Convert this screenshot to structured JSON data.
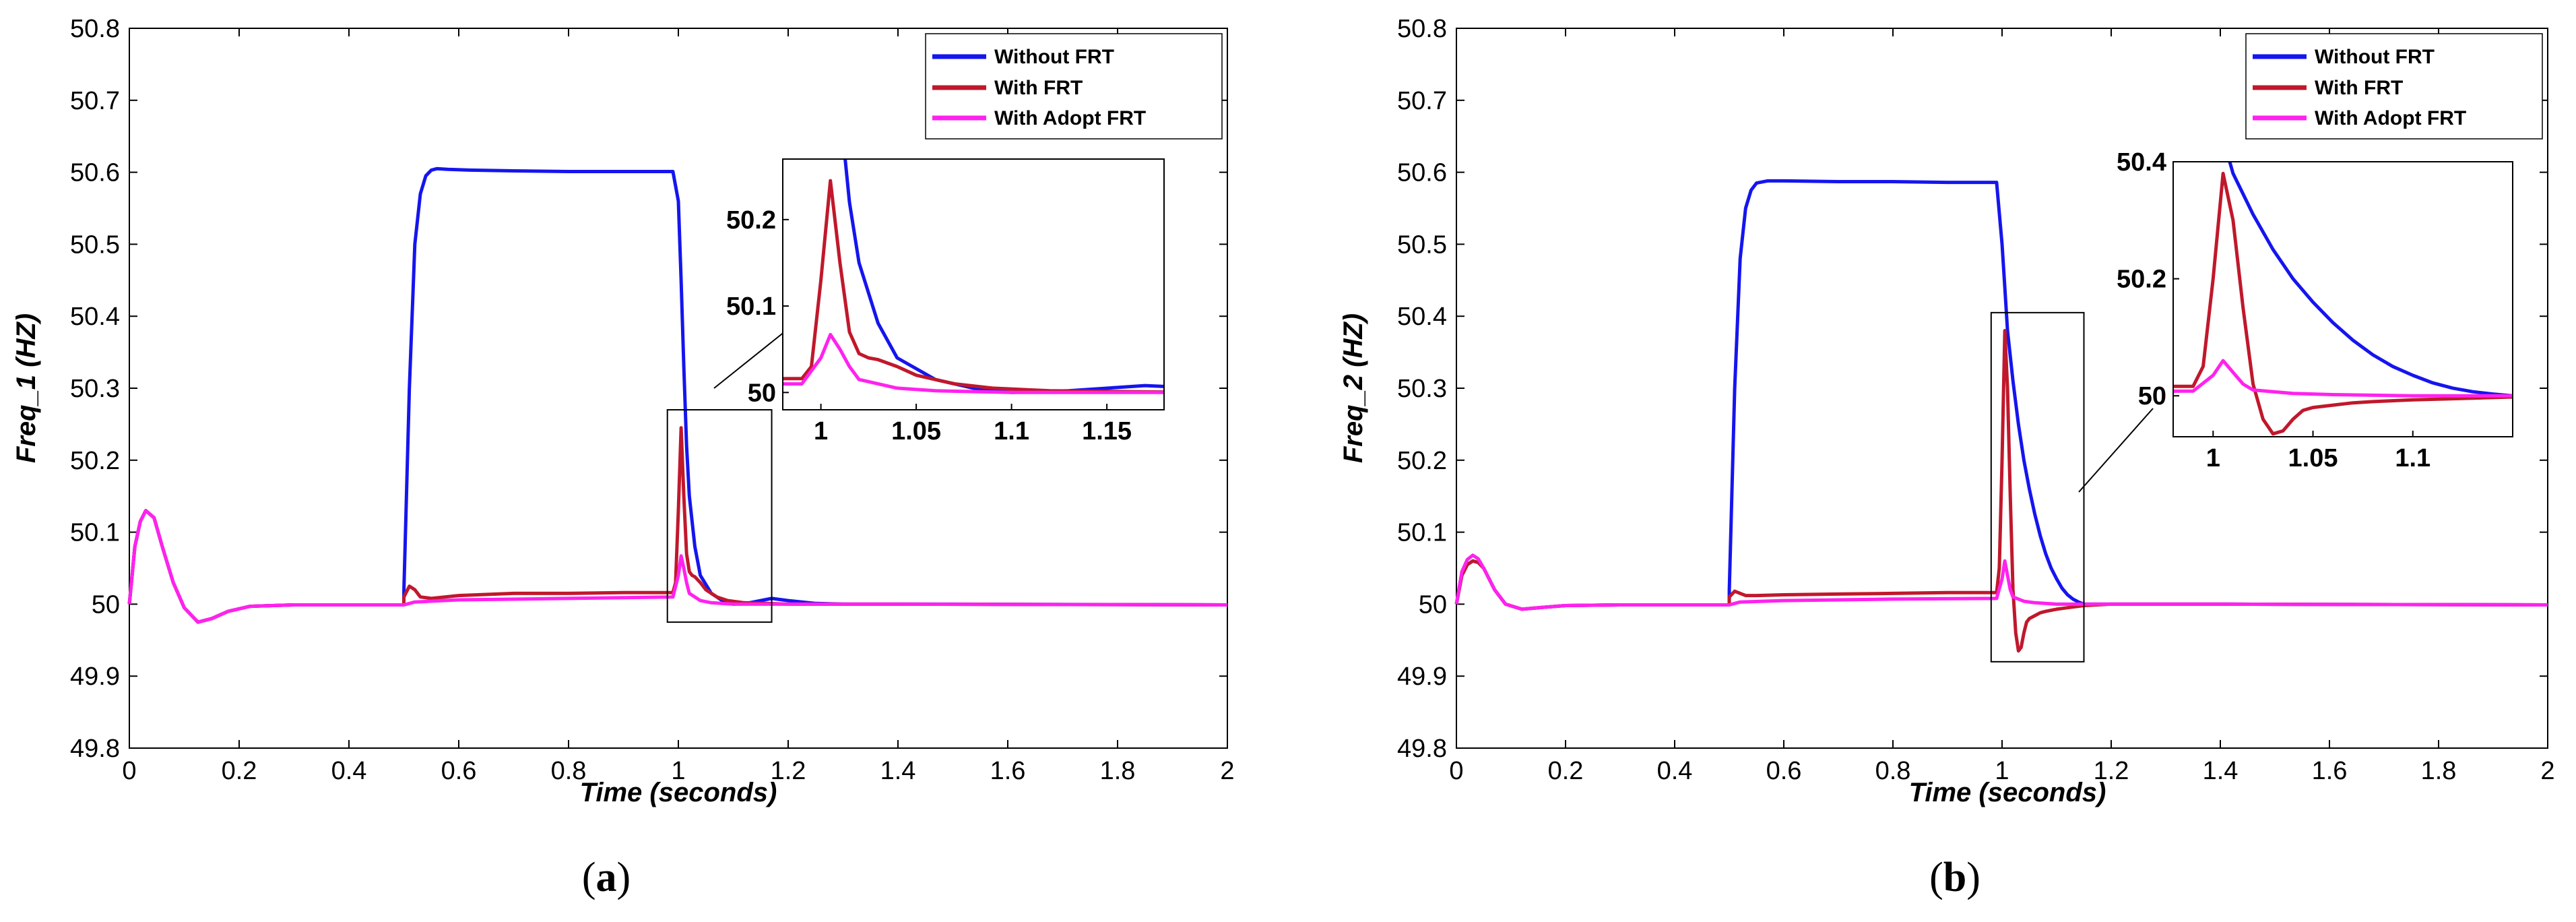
{
  "figure": {
    "panels": [
      {
        "open": "(",
        "letter": "a",
        "close": ")"
      },
      {
        "open": "(",
        "letter": "b",
        "close": ")"
      }
    ]
  },
  "chart_data": [
    {
      "type": "line",
      "panel": "(a)",
      "title": "",
      "xlabel": "Time (seconds)",
      "ylabel": "Freq_1 (HZ)",
      "xlim": [
        0,
        2
      ],
      "ylim": [
        49.8,
        50.8
      ],
      "xticks": [
        0,
        0.2,
        0.4,
        0.6,
        0.8,
        1,
        1.2,
        1.4,
        1.6,
        1.8,
        2
      ],
      "xtick_labels": [
        "0",
        "0.2",
        "0.4",
        "0.6",
        "0.8",
        "1",
        "1.2",
        "1.4",
        "1.6",
        "1.8",
        "2"
      ],
      "yticks": [
        49.8,
        49.9,
        50,
        50.1,
        50.2,
        50.3,
        50.4,
        50.5,
        50.6,
        50.7,
        50.8
      ],
      "ytick_labels": [
        "49.8",
        "49.9",
        "50",
        "50.1",
        "50.2",
        "50.3",
        "50.4",
        "50.5",
        "50.6",
        "50.7",
        "50.8"
      ],
      "legend_position": "top-right",
      "series": [
        {
          "name": "Without FRT",
          "color": "#1515ee",
          "x": [
            0,
            0.01,
            0.02,
            0.03,
            0.045,
            0.06,
            0.08,
            0.1,
            0.125,
            0.15,
            0.18,
            0.22,
            0.3,
            0.5,
            0.5001,
            0.51,
            0.52,
            0.53,
            0.54,
            0.55,
            0.56,
            0.58,
            0.62,
            0.7,
            0.8,
            0.9,
            0.95,
            0.99,
            1.0,
            1.005,
            1.01,
            1.015,
            1.02,
            1.03,
            1.04,
            1.06,
            1.08,
            1.1,
            1.13,
            1.17,
            1.2,
            1.25,
            1.3,
            1.5,
            2.0
          ],
          "y": [
            50.0,
            50.08,
            50.115,
            50.13,
            50.12,
            50.08,
            50.03,
            49.995,
            49.975,
            49.98,
            49.99,
            49.997,
            49.999,
            49.999,
            50.02,
            50.3,
            50.5,
            50.57,
            50.595,
            50.603,
            50.605,
            50.604,
            50.603,
            50.602,
            50.601,
            50.601,
            50.601,
            50.601,
            50.56,
            50.45,
            50.33,
            50.22,
            50.15,
            50.08,
            50.04,
            50.015,
            50.005,
            50.0,
            50.002,
            50.008,
            50.005,
            50.001,
            50.0,
            50.0,
            49.999
          ]
        },
        {
          "name": "With FRT",
          "color": "#c0182c",
          "x": [
            0,
            0.01,
            0.02,
            0.03,
            0.045,
            0.06,
            0.08,
            0.1,
            0.125,
            0.15,
            0.18,
            0.22,
            0.3,
            0.5,
            0.5001,
            0.51,
            0.52,
            0.53,
            0.55,
            0.6,
            0.7,
            0.8,
            0.9,
            0.99,
            0.995,
            1.0,
            1.005,
            1.01,
            1.015,
            1.02,
            1.025,
            1.03,
            1.04,
            1.05,
            1.07,
            1.09,
            1.12,
            1.2,
            1.4,
            2.0
          ],
          "y": [
            50.0,
            50.08,
            50.115,
            50.13,
            50.12,
            50.08,
            50.03,
            49.995,
            49.975,
            49.98,
            49.99,
            49.997,
            49.999,
            49.999,
            50.01,
            50.025,
            50.02,
            50.01,
            50.008,
            50.012,
            50.015,
            50.015,
            50.016,
            50.016,
            50.03,
            50.13,
            50.245,
            50.15,
            50.07,
            50.045,
            50.04,
            50.038,
            50.03,
            50.02,
            50.01,
            50.005,
            50.002,
            50.0,
            50.0,
            49.999
          ]
        },
        {
          "name": "With Adopt FRT",
          "color": "#ff22ee",
          "x": [
            0,
            0.01,
            0.02,
            0.03,
            0.045,
            0.06,
            0.08,
            0.1,
            0.125,
            0.15,
            0.18,
            0.22,
            0.3,
            0.5,
            0.52,
            0.6,
            0.8,
            0.99,
            1.0,
            1.005,
            1.01,
            1.015,
            1.02,
            1.04,
            1.06,
            1.1,
            1.2,
            1.4,
            2.0
          ],
          "y": [
            50.0,
            50.08,
            50.115,
            50.13,
            50.12,
            50.08,
            50.03,
            49.995,
            49.975,
            49.98,
            49.99,
            49.997,
            49.999,
            49.999,
            50.003,
            50.006,
            50.008,
            50.01,
            50.04,
            50.067,
            50.05,
            50.03,
            50.015,
            50.005,
            50.002,
            50.0,
            50.0,
            50.0,
            49.999
          ]
        }
      ],
      "zoom_box": {
        "xlim": [
          0.98,
          1.17
        ],
        "ylim": [
          49.975,
          50.27
        ]
      },
      "inset": {
        "xlim": [
          0.98,
          1.18
        ],
        "ylim": [
          49.98,
          50.27
        ],
        "xticks": [
          1,
          1.05,
          1.1,
          1.15
        ],
        "xtick_labels": [
          "1",
          "1.05",
          "1.1",
          "1.15"
        ],
        "yticks": [
          50,
          50.1,
          50.2
        ],
        "ytick_labels": [
          "50",
          "50.1",
          "50.2"
        ]
      }
    },
    {
      "type": "line",
      "panel": "(b)",
      "title": "",
      "xlabel": "Time (seconds)",
      "ylabel": "Freq_2 (HZ)",
      "xlim": [
        0,
        2
      ],
      "ylim": [
        49.8,
        50.8
      ],
      "xticks": [
        0,
        0.2,
        0.4,
        0.6,
        0.8,
        1,
        1.2,
        1.4,
        1.6,
        1.8,
        2
      ],
      "xtick_labels": [
        "0",
        "0.2",
        "0.4",
        "0.6",
        "0.8",
        "1",
        "1.2",
        "1.4",
        "1.6",
        "1.8",
        "2"
      ],
      "yticks": [
        49.8,
        49.9,
        50,
        50.1,
        50.2,
        50.3,
        50.4,
        50.5,
        50.6,
        50.7,
        50.8
      ],
      "ytick_labels": [
        "49.8",
        "49.9",
        "50",
        "50.1",
        "50.2",
        "50.3",
        "50.4",
        "50.5",
        "50.6",
        "50.7",
        "50.8"
      ],
      "legend_position": "top-right",
      "series": [
        {
          "name": "Without FRT",
          "color": "#1515ee",
          "x": [
            0,
            0.01,
            0.02,
            0.03,
            0.04,
            0.05,
            0.07,
            0.09,
            0.12,
            0.15,
            0.2,
            0.3,
            0.5,
            0.5001,
            0.51,
            0.52,
            0.53,
            0.54,
            0.55,
            0.57,
            0.6,
            0.7,
            0.8,
            0.9,
            0.99,
            1.0,
            1.005,
            1.01,
            1.02,
            1.03,
            1.04,
            1.05,
            1.06,
            1.07,
            1.08,
            1.09,
            1.1,
            1.11,
            1.12,
            1.13,
            1.14,
            1.15,
            1.2,
            1.4,
            2.0
          ],
          "y": [
            50.0,
            50.04,
            50.055,
            50.06,
            50.058,
            50.05,
            50.02,
            50.0,
            49.993,
            49.995,
            49.998,
            49.999,
            49.999,
            50.02,
            50.3,
            50.48,
            50.55,
            50.575,
            50.585,
            50.588,
            50.588,
            50.587,
            50.587,
            50.586,
            50.586,
            50.5,
            50.44,
            50.38,
            50.31,
            50.25,
            50.2,
            50.16,
            50.125,
            50.095,
            50.07,
            50.05,
            50.035,
            50.022,
            50.013,
            50.007,
            50.003,
            50.0,
            50.0,
            50.0,
            49.999
          ]
        },
        {
          "name": "With FRT",
          "color": "#c0182c",
          "x": [
            0,
            0.01,
            0.02,
            0.03,
            0.04,
            0.05,
            0.07,
            0.09,
            0.12,
            0.15,
            0.2,
            0.3,
            0.5,
            0.5001,
            0.51,
            0.52,
            0.53,
            0.55,
            0.6,
            0.7,
            0.8,
            0.9,
            0.99,
            0.995,
            1.0,
            1.005,
            1.01,
            1.015,
            1.02,
            1.025,
            1.03,
            1.035,
            1.04,
            1.045,
            1.05,
            1.06,
            1.07,
            1.08,
            1.1,
            1.12,
            1.15,
            1.2,
            1.4,
            2.0
          ],
          "y": [
            50.0,
            50.04,
            50.055,
            50.06,
            50.058,
            50.05,
            50.02,
            50.0,
            49.993,
            49.995,
            49.998,
            49.999,
            49.999,
            50.01,
            50.018,
            50.015,
            50.012,
            50.012,
            50.013,
            50.014,
            50.015,
            50.016,
            50.016,
            50.05,
            50.2,
            50.38,
            50.3,
            50.15,
            50.02,
            49.96,
            49.935,
            49.94,
            49.96,
            49.975,
            49.98,
            49.984,
            49.988,
            49.99,
            49.993,
            49.995,
            49.998,
            50.0,
            50.0,
            49.999
          ]
        },
        {
          "name": "With Adopt FRT",
          "color": "#ff22ee",
          "x": [
            0,
            0.01,
            0.02,
            0.03,
            0.04,
            0.05,
            0.07,
            0.09,
            0.12,
            0.15,
            0.2,
            0.3,
            0.5,
            0.52,
            0.6,
            0.8,
            0.99,
            1.0,
            1.005,
            1.01,
            1.015,
            1.02,
            1.04,
            1.06,
            1.1,
            1.2,
            1.4,
            2.0
          ],
          "y": [
            50.0,
            50.045,
            50.062,
            50.068,
            50.063,
            50.05,
            50.02,
            50.0,
            49.993,
            49.995,
            49.998,
            49.999,
            49.999,
            50.003,
            50.005,
            50.007,
            50.008,
            50.035,
            50.06,
            50.04,
            50.02,
            50.01,
            50.004,
            50.002,
            50.0,
            50.0,
            50.0,
            49.999
          ]
        }
      ],
      "zoom_box": {
        "xlim": [
          0.98,
          1.15
        ],
        "ylim": [
          49.92,
          50.405
        ]
      },
      "inset": {
        "xlim": [
          0.98,
          1.15
        ],
        "ylim": [
          49.93,
          50.4
        ],
        "xticks": [
          1,
          1.05,
          1.1
        ],
        "xtick_labels": [
          "1",
          "1.05",
          "1.1"
        ],
        "yticks": [
          50,
          50.2,
          50.4
        ],
        "ytick_labels": [
          "50",
          "50.2",
          "50.4"
        ]
      }
    }
  ]
}
